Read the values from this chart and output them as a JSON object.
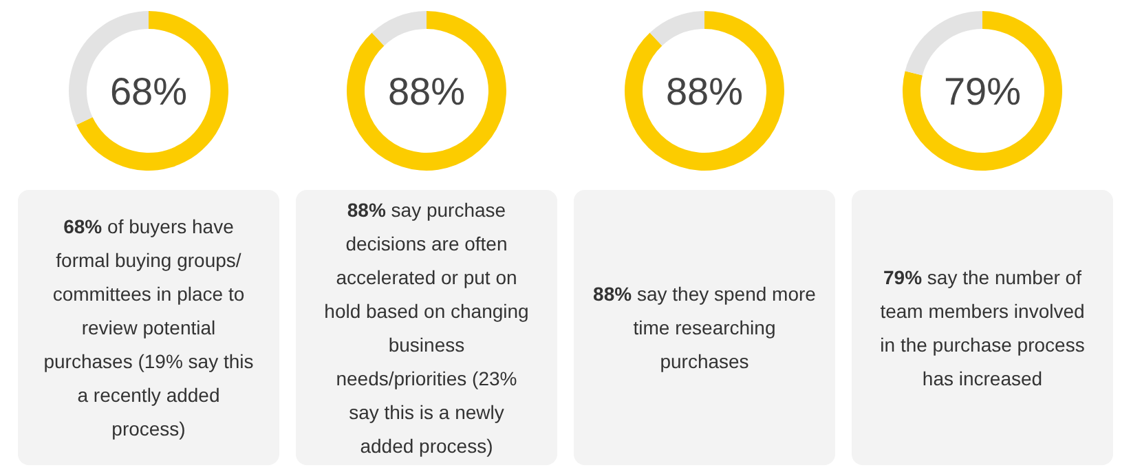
{
  "chart_data": [
    {
      "type": "donut",
      "categories": [
        null,
        null
      ],
      "values": [
        68,
        32
      ],
      "colors": [
        "#fccc00",
        "#e3e3e3"
      ],
      "value_labels": [
        "68%",
        null
      ],
      "annotations": [
        "68% of buyers have formal buying groups/ committees in place to review potential purchases (19% say this a recently added process)"
      ]
    },
    {
      "type": "donut",
      "categories": [
        null,
        null
      ],
      "values": [
        88,
        12
      ],
      "colors": [
        "#fccc00",
        "#e3e3e3"
      ],
      "value_labels": [
        "88%",
        null
      ],
      "annotations": [
        "88% say purchase decisions are often accelerated or put on hold based on changing business needs/priorities (23% say this is a newly added process)"
      ]
    },
    {
      "type": "donut",
      "categories": [
        null,
        null
      ],
      "values": [
        88,
        12
      ],
      "colors": [
        "#fccc00",
        "#e3e3e3"
      ],
      "value_labels": [
        "88%",
        null
      ],
      "annotations": [
        "88% say they spend more time researching purchases"
      ]
    },
    {
      "type": "donut",
      "categories": [
        null,
        null
      ],
      "values": [
        79,
        21
      ],
      "colors": [
        "#fccc00",
        "#e3e3e3"
      ],
      "value_labels": [
        "79%",
        null
      ],
      "annotations": [
        "79% say the number of team members involved in the purchase process has increased"
      ]
    }
  ]
}
